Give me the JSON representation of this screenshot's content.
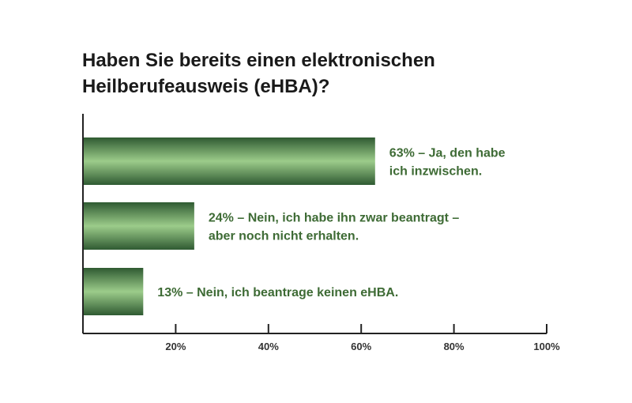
{
  "chart_data": {
    "type": "bar",
    "orientation": "horizontal",
    "title": "Haben Sie bereits einen elektronischen Heilberufeausweis (eHBA)?",
    "title_lines": [
      "Haben Sie bereits einen elektronischen",
      "Heilberufeausweis (eHBA)?"
    ],
    "values": [
      63,
      24,
      13
    ],
    "bar_labels": [
      [
        "63% – Ja, den habe",
        "ich inzwischen."
      ],
      [
        "24% – Nein, ich habe ihn zwar beantragt –",
        "aber noch nicht erhalten."
      ],
      [
        "13% – Nein, ich beantrage keinen eHBA."
      ]
    ],
    "xlim": [
      0,
      100
    ],
    "x_ticks": [
      20,
      40,
      60,
      80,
      100
    ],
    "x_tick_labels": [
      "20%",
      "40%",
      "60%",
      "80%",
      "100%"
    ],
    "xlabel": "",
    "ylabel": "",
    "grid": false,
    "legend": "none",
    "colors": {
      "bar_dark": "#2f5a32",
      "bar_light": "#9ccc8a",
      "label": "#3e6b35",
      "axis": "#222222"
    }
  }
}
